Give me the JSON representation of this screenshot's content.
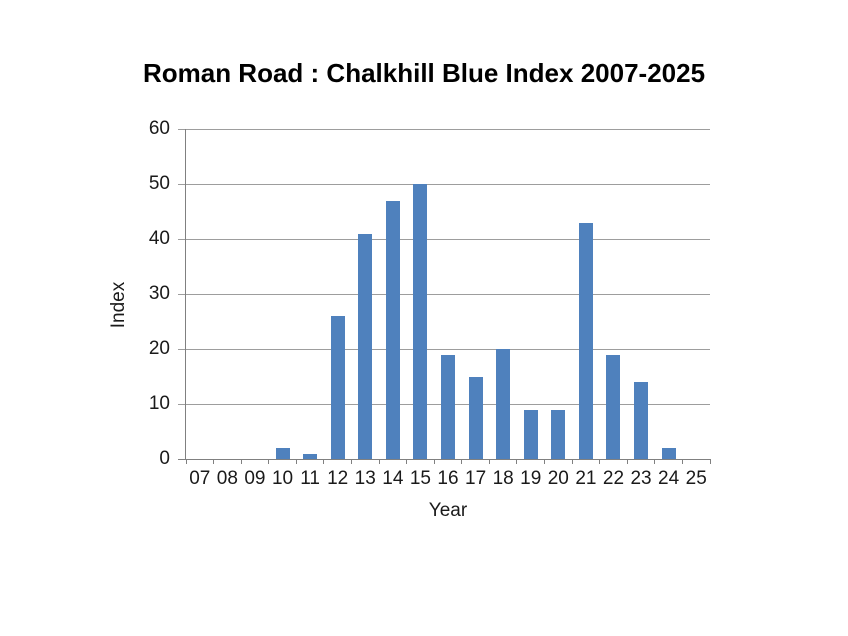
{
  "chart_data": {
    "type": "bar",
    "title": "Roman Road : Chalkhill Blue Index 2007-2025",
    "xlabel": "Year",
    "ylabel": "Index",
    "categories": [
      "07",
      "08",
      "09",
      "10",
      "11",
      "12",
      "13",
      "14",
      "15",
      "16",
      "17",
      "18",
      "19",
      "20",
      "21",
      "22",
      "23",
      "24",
      "25"
    ],
    "values": [
      0,
      0,
      0,
      2,
      1,
      26,
      41,
      47,
      50,
      19,
      15,
      20,
      9,
      9,
      43,
      19,
      14,
      2,
      0
    ],
    "yticks": [
      0,
      10,
      20,
      30,
      40,
      50,
      60
    ],
    "ylim": [
      0,
      60
    ],
    "grid": "horizontal",
    "legend_position": "none",
    "colors": {
      "bar_fill": "#4f81bd",
      "gridline": "#9d9d9d",
      "axis_line": "#808080",
      "text": "#1a1a1a",
      "title_text": "#000000",
      "background": "#ffffff"
    }
  }
}
